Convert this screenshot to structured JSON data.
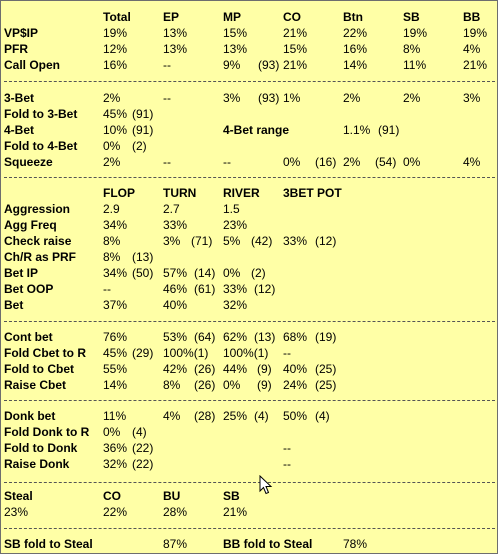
{
  "hud": {
    "pos_header": {
      "total": "Total",
      "ep": "EP",
      "mp": "MP",
      "co": "CO",
      "btn": "Btn",
      "sb": "SB",
      "bb": "BB"
    },
    "vpip": {
      "label": "VP$IP",
      "total": "19%",
      "ep": "13%",
      "mp": "15%",
      "co": "21%",
      "btn": "22%",
      "sb": "19%",
      "bb": "19%"
    },
    "pfr": {
      "label": "PFR",
      "total": "12%",
      "ep": "13%",
      "mp": "13%",
      "co": "15%",
      "btn": "16%",
      "sb": "8%",
      "bb": "4%"
    },
    "call_open": {
      "label": "Call Open",
      "total": "16%",
      "ep": "--",
      "mp": "9%",
      "mp_n": "(93)",
      "co": "21%",
      "btn": "14%",
      "sb": "11%",
      "bb": "21%"
    },
    "three_bet": {
      "label": "3-Bet",
      "total": "2%",
      "ep": "--",
      "mp": "3%",
      "mp_n": "(93)",
      "co": "1%",
      "btn": "2%",
      "sb": "2%",
      "bb": "3%"
    },
    "fold_to_3bet": {
      "label": "Fold to 3-Bet",
      "total": "45%",
      "total_n": "(91)"
    },
    "four_bet": {
      "label": "4-Bet",
      "total": "10%",
      "total_n": "(91)",
      "range_label": "4-Bet range",
      "range_value": "1.1%",
      "range_n": "(91)"
    },
    "fold_to_4bet": {
      "label": "Fold to 4-Bet",
      "total": "0%",
      "total_n": "(2)"
    },
    "squeeze": {
      "label": "Squeeze",
      "total": "2%",
      "ep": "--",
      "mp": "--",
      "co": "0%",
      "co_n": "(16)",
      "btn": "2%",
      "btn_n": "(54)",
      "sb": "0%",
      "bb": "4%"
    },
    "street_header": {
      "flop": "FLOP",
      "turn": "TURN",
      "river": "RIVER",
      "pot3bet": "3BET POT"
    },
    "aggression": {
      "label": "Aggression",
      "flop": "2.9",
      "turn": "2.7",
      "river": "1.5"
    },
    "agg_freq": {
      "label": "Agg Freq",
      "flop": "34%",
      "turn": "33%",
      "river": "23%"
    },
    "check_raise": {
      "label": "Check raise",
      "flop": "8%",
      "turn": "3%",
      "turn_n": "(71)",
      "river": "5%",
      "river_n": "(42)",
      "pot3bet": "33%",
      "pot3bet_n": "(12)"
    },
    "chr_prf": {
      "label": "Ch/R as PRF",
      "flop": "8%",
      "flop_n": "(13)"
    },
    "bet_ip": {
      "label": "Bet IP",
      "flop": "34%",
      "flop_n": "(50)",
      "turn": "57%",
      "turn_n": "(14)",
      "river": "0%",
      "river_n": "(2)"
    },
    "bet_oop": {
      "label": "Bet OOP",
      "flop": "--",
      "turn": "46%",
      "turn_n": "(61)",
      "river": "33%",
      "river_n": "(12)"
    },
    "bet": {
      "label": "Bet",
      "flop": "37%",
      "turn": "40%",
      "river": "32%"
    },
    "cont_bet": {
      "label": "Cont bet",
      "flop": "76%",
      "turn": "53%",
      "turn_n": "(64)",
      "river": "62%",
      "river_n": "(13)",
      "pot3bet": "68%",
      "pot3bet_n": "(19)"
    },
    "fold_cbet_r": {
      "label": "Fold Cbet to R",
      "flop": "45%",
      "flop_n": "(29)",
      "turn": "100%(1)",
      "river": "100%(1)",
      "pot3bet": "--"
    },
    "fold_to_cbet": {
      "label": "Fold to Cbet",
      "flop": "55%",
      "turn": "42%",
      "turn_n": "(26)",
      "river": "44%",
      "river_n": "(9)",
      "pot3bet": "40%",
      "pot3bet_n": "(25)"
    },
    "raise_cbet": {
      "label": "Raise Cbet",
      "flop": "14%",
      "turn": "8%",
      "turn_n": "(26)",
      "river": "0%",
      "river_n": "(9)",
      "pot3bet": "24%",
      "pot3bet_n": "(25)"
    },
    "donk_bet": {
      "label": "Donk bet",
      "flop": "11%",
      "turn": "4%",
      "turn_n": "(28)",
      "river": "25%",
      "river_n": "(4)",
      "pot3bet": "50%",
      "pot3bet_n": "(4)"
    },
    "fold_donk_r": {
      "label": "Fold Donk to R",
      "flop": "0%",
      "flop_n": "(4)"
    },
    "fold_to_donk": {
      "label": "Fold to Donk",
      "flop": "36%",
      "flop_n": "(22)",
      "pot3bet": "--"
    },
    "raise_donk": {
      "label": "Raise Donk",
      "flop": "32%",
      "flop_n": "(22)",
      "pot3bet": "--"
    },
    "steal": {
      "label": "Steal",
      "total": "23%",
      "co_label": "CO",
      "co": "22%",
      "bu_label": "BU",
      "bu": "28%",
      "sb_label": "SB",
      "sb": "21%"
    },
    "sb_fold_steal": {
      "label": "SB fold to Steal",
      "value": "87%"
    },
    "bb_fold_steal": {
      "label": "BB fold to Steal",
      "value": "78%"
    }
  }
}
